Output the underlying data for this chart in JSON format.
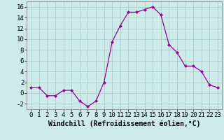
{
  "x": [
    0,
    1,
    2,
    3,
    4,
    5,
    6,
    7,
    8,
    9,
    10,
    11,
    12,
    13,
    14,
    15,
    16,
    17,
    18,
    19,
    20,
    21,
    22,
    23
  ],
  "y": [
    1,
    1,
    -0.5,
    -0.5,
    0.5,
    0.5,
    -1.5,
    -2.5,
    -1.5,
    2,
    9.5,
    12.5,
    15,
    15,
    15.5,
    16,
    14.5,
    9,
    7.5,
    5,
    5,
    4,
    1.5,
    1
  ],
  "line_color": "#990099",
  "marker": "D",
  "marker_size": 2.0,
  "bg_color": "#cceae8",
  "grid_color": "#aacccc",
  "xlabel": "Windchill (Refroidissement éolien,°C)",
  "xlabel_fontsize": 7,
  "tick_fontsize": 6.5,
  "ylim": [
    -3,
    17
  ],
  "yticks": [
    -2,
    0,
    2,
    4,
    6,
    8,
    10,
    12,
    14,
    16
  ],
  "xlim": [
    -0.5,
    23.5
  ],
  "xticks": [
    0,
    1,
    2,
    3,
    4,
    5,
    6,
    7,
    8,
    9,
    10,
    11,
    12,
    13,
    14,
    15,
    16,
    17,
    18,
    19,
    20,
    21,
    22,
    23
  ]
}
